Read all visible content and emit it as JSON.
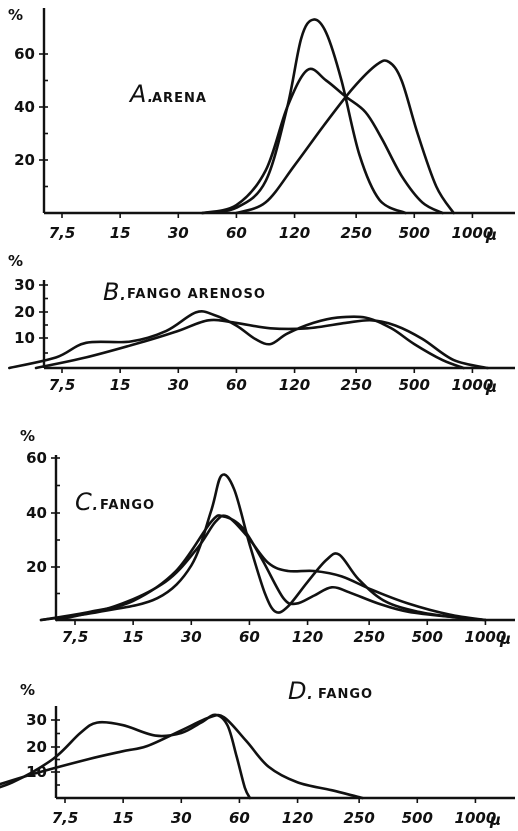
{
  "chart_data": [
    {
      "type": "line",
      "panel_letter": "A.",
      "title": "ARENA",
      "ylabel": "%",
      "x_tick_labels": [
        "7,5",
        "15",
        "30",
        "60",
        "120",
        "250",
        "500",
        "1000"
      ],
      "unit": "μ",
      "x_scale": "log2",
      "y_ticks": [
        20,
        40,
        60
      ],
      "ylim": [
        0,
        75
      ],
      "series": [
        {
          "points": [
            [
              40,
              0
            ],
            [
              60,
              2
            ],
            [
              85,
              12
            ],
            [
              110,
              40
            ],
            [
              130,
              66
            ],
            [
              150,
              73
            ],
            [
              175,
              68
            ],
            [
              210,
              50
            ],
            [
              260,
              22
            ],
            [
              330,
              5
            ],
            [
              450,
              0
            ]
          ]
        },
        {
          "points": [
            [
              40,
              0
            ],
            [
              60,
              3
            ],
            [
              85,
              16
            ],
            [
              110,
              40
            ],
            [
              140,
              54
            ],
            [
              175,
              50
            ],
            [
              220,
              44
            ],
            [
              280,
              38
            ],
            [
              340,
              28
            ],
            [
              430,
              14
            ],
            [
              550,
              4
            ],
            [
              700,
              0
            ]
          ]
        },
        {
          "points": [
            [
              60,
              0
            ],
            [
              85,
              4
            ],
            [
              120,
              18
            ],
            [
              170,
              33
            ],
            [
              240,
              47
            ],
            [
              320,
              56
            ],
            [
              370,
              57
            ],
            [
              430,
              50
            ],
            [
              520,
              30
            ],
            [
              650,
              10
            ],
            [
              800,
              0
            ]
          ]
        }
      ]
    },
    {
      "type": "line",
      "panel_letter": "B.",
      "title": "FANGO ARENOSO",
      "ylabel": "%",
      "x_tick_labels": [
        "7,5",
        "15",
        "30",
        "60",
        "120",
        "250",
        "500",
        "1000"
      ],
      "unit": "μ",
      "x_scale": "log2",
      "y_ticks": [
        10,
        20,
        30
      ],
      "ylim": [
        0,
        33
      ],
      "series": [
        {
          "points": [
            [
              4,
              0
            ],
            [
              7,
              4
            ],
            [
              10,
              9.5
            ],
            [
              17,
              10
            ],
            [
              26,
              14
            ],
            [
              37,
              21
            ],
            [
              46,
              20
            ],
            [
              60,
              16
            ],
            [
              75,
              11
            ],
            [
              90,
              9
            ],
            [
              110,
              13
            ],
            [
              150,
              17
            ],
            [
              200,
              19
            ],
            [
              280,
              19
            ],
            [
              380,
              15
            ],
            [
              500,
              9
            ],
            [
              700,
              3
            ],
            [
              900,
              0
            ]
          ]
        },
        {
          "points": [
            [
              5.5,
              0
            ],
            [
              10,
              4
            ],
            [
              20,
              10
            ],
            [
              30,
              14
            ],
            [
              43,
              18
            ],
            [
              60,
              17
            ],
            [
              90,
              15
            ],
            [
              140,
              15
            ],
            [
              220,
              17
            ],
            [
              300,
              18
            ],
            [
              400,
              16
            ],
            [
              550,
              11
            ],
            [
              800,
              3
            ],
            [
              1200,
              0
            ]
          ]
        }
      ]
    },
    {
      "type": "line",
      "panel_letter": "C.",
      "title": "FANGO",
      "ylabel": "%",
      "x_tick_labels": [
        "7,5",
        "15",
        "30",
        "60",
        "120",
        "250",
        "500",
        "1000"
      ],
      "unit": "μ",
      "x_scale": "log2",
      "y_ticks": [
        20,
        40,
        60
      ],
      "ylim": [
        0,
        65
      ],
      "series": [
        {
          "points": [
            [
              5,
              0
            ],
            [
              10,
              3
            ],
            [
              20,
              8
            ],
            [
              30,
              20
            ],
            [
              38,
              40
            ],
            [
              43,
              53
            ],
            [
              50,
              48
            ],
            [
              60,
              28
            ],
            [
              72,
              10
            ],
            [
              82,
              3
            ],
            [
              95,
              5
            ],
            [
              120,
              14
            ],
            [
              150,
              22
            ],
            [
              175,
              24
            ],
            [
              220,
              15
            ],
            [
              300,
              7
            ],
            [
              450,
              3
            ],
            [
              700,
              1
            ],
            [
              1000,
              0
            ]
          ]
        },
        {
          "points": [
            [
              5,
              0
            ],
            [
              9,
              3
            ],
            [
              15,
              7
            ],
            [
              25,
              18
            ],
            [
              38,
              36
            ],
            [
              44,
              38
            ],
            [
              55,
              34
            ],
            [
              70,
              22
            ],
            [
              90,
              8
            ],
            [
              105,
              6
            ],
            [
              130,
              9
            ],
            [
              160,
              12
            ],
            [
              200,
              10
            ],
            [
              280,
              6
            ],
            [
              400,
              3
            ],
            [
              700,
              1
            ],
            [
              1000,
              0
            ]
          ]
        },
        {
          "points": [
            [
              6,
              0
            ],
            [
              12,
              5
            ],
            [
              22,
              14
            ],
            [
              32,
              26
            ],
            [
              40,
              36
            ],
            [
              46,
              38
            ],
            [
              58,
              31
            ],
            [
              75,
              21
            ],
            [
              95,
              18
            ],
            [
              130,
              18
            ],
            [
              180,
              16
            ],
            [
              260,
              11
            ],
            [
              400,
              6
            ],
            [
              650,
              2
            ],
            [
              1000,
              0
            ]
          ]
        }
      ]
    },
    {
      "type": "line",
      "panel_letter": "D.",
      "title": "FANGO",
      "ylabel": "%",
      "x_tick_labels": [
        "7,5",
        "15",
        "30",
        "60",
        "120",
        "250",
        "500",
        "1000"
      ],
      "unit": "μ",
      "x_scale": "log2",
      "y_ticks": [
        10,
        20,
        30
      ],
      "ylim": [
        0,
        36
      ],
      "series": [
        {
          "points": [
            [
              2.5,
              1
            ],
            [
              4,
              6
            ],
            [
              6.5,
              15
            ],
            [
              9,
              25
            ],
            [
              11,
              29
            ],
            [
              15,
              28
            ],
            [
              22,
              24
            ],
            [
              30,
              25
            ],
            [
              38,
              29
            ],
            [
              45,
              32
            ],
            [
              52,
              28
            ],
            [
              58,
              16
            ],
            [
              64,
              4
            ],
            [
              68,
              0
            ]
          ]
        },
        {
          "points": [
            [
              2.5,
              2
            ],
            [
              5,
              9
            ],
            [
              10,
              15
            ],
            [
              15,
              18
            ],
            [
              20,
              20
            ],
            [
              30,
              26
            ],
            [
              42,
              31
            ],
            [
              50,
              31
            ],
            [
              65,
              22
            ],
            [
              85,
              12
            ],
            [
              120,
              6
            ],
            [
              180,
              3
            ],
            [
              260,
              0
            ]
          ]
        }
      ]
    }
  ]
}
